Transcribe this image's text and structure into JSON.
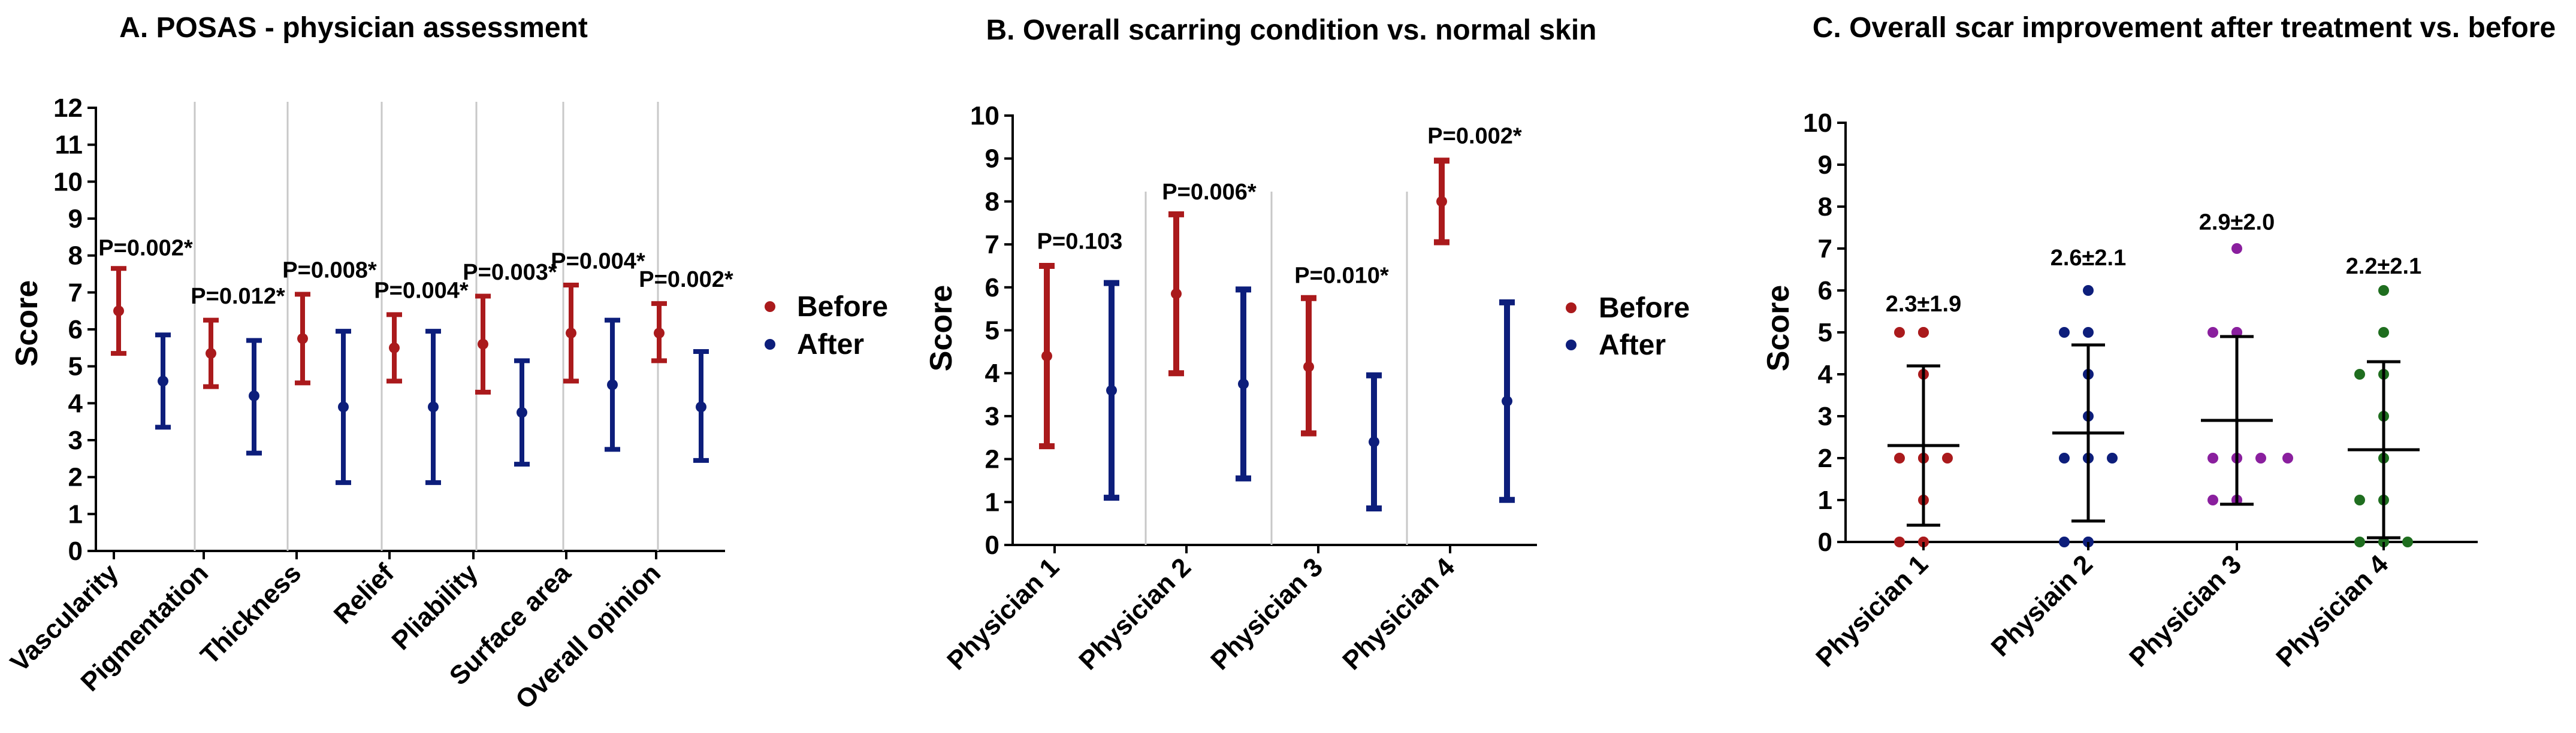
{
  "colors": {
    "before": "#aa1a1c",
    "after": "#0d1e7b",
    "axis": "#000000",
    "sep": "#c8c8c8"
  },
  "chart_data": [
    {
      "id": "A",
      "type": "errorbar",
      "title": "A. POSAS - physician assessment",
      "ylabel": "Score",
      "ylim": [
        0,
        12
      ],
      "yticks": [
        0,
        1,
        2,
        3,
        4,
        5,
        6,
        7,
        8,
        9,
        10,
        11,
        12
      ],
      "categories": [
        "Vascularity",
        "Pigmentation",
        "Thickness",
        "Relief",
        "Pliability",
        "Surface area",
        "Overall opinion"
      ],
      "series": [
        {
          "name": "Before",
          "color": "before",
          "mean": [
            6.5,
            5.35,
            5.75,
            5.5,
            5.6,
            5.9,
            5.9
          ],
          "low": [
            5.35,
            4.45,
            4.55,
            4.6,
            4.3,
            4.6,
            5.15
          ],
          "high": [
            7.65,
            6.25,
            6.95,
            6.4,
            6.9,
            7.2,
            6.7
          ]
        },
        {
          "name": "After",
          "color": "after",
          "mean": [
            4.6,
            4.2,
            3.9,
            3.9,
            3.75,
            4.5,
            3.9
          ],
          "low": [
            3.35,
            2.65,
            1.85,
            1.85,
            2.35,
            2.75,
            2.45
          ],
          "high": [
            5.85,
            5.7,
            5.95,
            5.95,
            5.15,
            6.25,
            5.4
          ]
        }
      ],
      "annotations": [
        "P=0.002*",
        "P=0.012*",
        "P=0.008*",
        "P=0.004*",
        "P=0.003*",
        "P=0.004*",
        "P=0.002*"
      ],
      "annotation_y": [
        8.0,
        6.7,
        7.4,
        6.85,
        7.35,
        7.65,
        7.15
      ],
      "legend": [
        "Before",
        "After"
      ]
    },
    {
      "id": "B",
      "type": "errorbar",
      "title": "B. Overall scarring condition vs. normal skin",
      "ylabel": "Score",
      "ylim": [
        0,
        10
      ],
      "yticks": [
        0,
        1,
        2,
        3,
        4,
        5,
        6,
        7,
        8,
        9,
        10
      ],
      "categories": [
        "Physician 1",
        "Physician 2",
        "Physician 3",
        "Physician 4"
      ],
      "series": [
        {
          "name": "Before",
          "color": "before",
          "mean": [
            4.4,
            5.85,
            4.15,
            8.0
          ],
          "low": [
            2.3,
            4.0,
            2.6,
            7.05
          ],
          "high": [
            6.5,
            7.7,
            5.75,
            8.95
          ]
        },
        {
          "name": "After",
          "color": "after",
          "mean": [
            3.6,
            3.75,
            2.4,
            3.35
          ],
          "low": [
            1.1,
            1.55,
            0.85,
            1.05
          ],
          "high": [
            6.1,
            5.95,
            3.95,
            5.65
          ]
        }
      ],
      "annotations": [
        "P=0.103",
        "P=0.006*",
        "P=0.010*",
        "P=0.002*"
      ],
      "annotation_y": [
        6.9,
        8.05,
        6.1,
        9.35
      ],
      "legend": [
        "Before",
        "After"
      ]
    },
    {
      "id": "C",
      "type": "scatter",
      "title": "C. Overall scar improvement after treatment vs. before",
      "ylabel": "Score",
      "ylim": [
        0,
        10
      ],
      "yticks": [
        0,
        1,
        2,
        3,
        4,
        5,
        6,
        7,
        8,
        9,
        10
      ],
      "categories": [
        "Physician 1",
        "Physiain 2",
        "Physician 3",
        "Physician 4"
      ],
      "point_colors": [
        "#aa1a1c",
        "#0d1e7b",
        "#8a1f9e",
        "#1f6e1f"
      ],
      "mean": [
        2.3,
        2.6,
        2.9,
        2.2
      ],
      "sd": [
        1.9,
        2.1,
        2.0,
        2.1
      ],
      "points": [
        [
          5,
          5,
          5,
          4,
          2,
          2,
          2,
          2,
          1,
          0,
          0,
          0
        ],
        [
          6,
          5,
          5,
          4,
          3,
          2,
          2,
          2,
          2,
          0,
          0,
          0
        ],
        [
          7,
          5,
          5,
          5,
          2,
          2,
          2,
          2,
          2,
          1,
          1,
          1
        ],
        [
          6,
          5,
          4,
          4,
          3,
          2,
          1,
          1,
          0,
          0,
          0,
          0
        ]
      ],
      "annotations": [
        "2.3±1.9",
        "2.6±2.1",
        "2.9±2.0",
        "2.2±2.1"
      ],
      "annotation_y": [
        5.5,
        6.6,
        7.45,
        6.4
      ]
    }
  ]
}
